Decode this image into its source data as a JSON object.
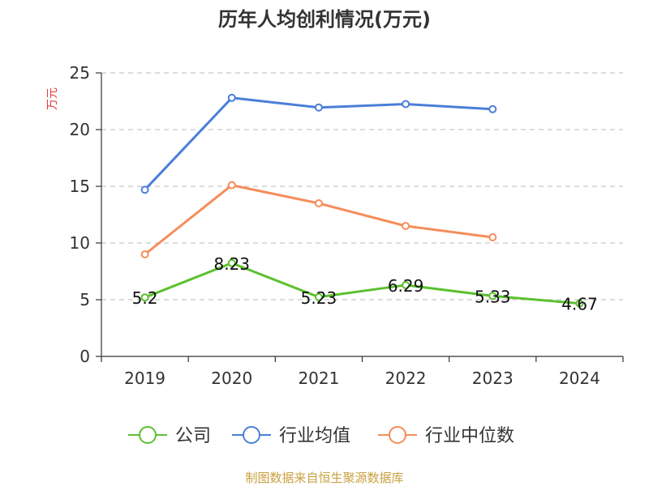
{
  "chart_data": {
    "type": "line",
    "title": "历年人均创利情况(万元)",
    "ylabel": "万元",
    "xlabel": "",
    "categories": [
      "2019",
      "2020",
      "2021",
      "2022",
      "2023",
      "2024"
    ],
    "ylim": [
      0,
      25
    ],
    "yticks": [
      0,
      5,
      10,
      15,
      20,
      25
    ],
    "grid": true,
    "legend_position": "bottom",
    "series": [
      {
        "name": "公司",
        "color": "#5cc12f",
        "values": [
          5.2,
          8.23,
          5.23,
          6.29,
          5.33,
          4.67
        ],
        "labels": [
          "5.2",
          "8.23",
          "5.23",
          "6.29",
          "5.33",
          "4.67"
        ]
      },
      {
        "name": "行业均值",
        "color": "#4a7fd8",
        "values": [
          14.7,
          22.8,
          21.95,
          22.25,
          21.8,
          null
        ]
      },
      {
        "name": "行业中位数",
        "color": "#f58d5a",
        "values": [
          9.0,
          15.1,
          13.5,
          11.5,
          10.5,
          null
        ]
      }
    ],
    "source": "制图数据来自恒生聚源数据库"
  }
}
